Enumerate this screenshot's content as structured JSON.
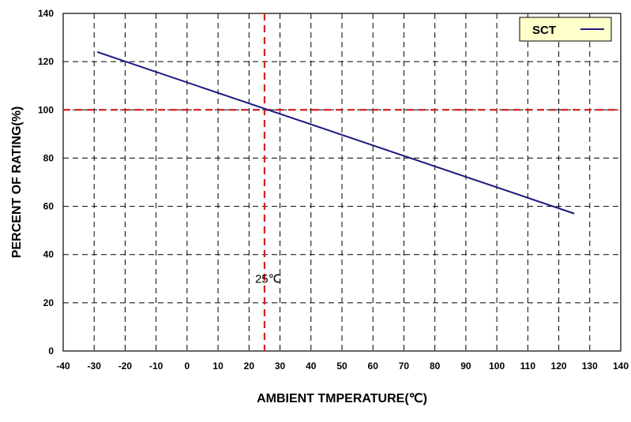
{
  "chart_data": {
    "type": "line",
    "xlabel": "AMBIENT TMPERATURE(℃)",
    "ylabel": "PERCENT OF RATING(%)",
    "xlim": [
      -40,
      140
    ],
    "ylim": [
      0,
      140
    ],
    "xticks": [
      -40,
      -30,
      -20,
      -10,
      0,
      10,
      20,
      30,
      40,
      50,
      60,
      70,
      80,
      90,
      100,
      110,
      120,
      130,
      140
    ],
    "yticks": [
      0,
      20,
      40,
      60,
      80,
      100,
      120,
      140
    ],
    "grid": true,
    "legend_position": "top-right",
    "series": [
      {
        "name": "SCT",
        "color": "#1a1a7e",
        "x": [
          -29,
          125
        ],
        "y": [
          124,
          57
        ]
      }
    ],
    "reference_lines": [
      {
        "orientation": "vertical",
        "value": 25,
        "color": "#d42020"
      },
      {
        "orientation": "horizontal",
        "value": 100,
        "color": "#d42020"
      }
    ],
    "annotations": [
      {
        "text": "25℃",
        "x": 25,
        "y": 30
      }
    ]
  }
}
